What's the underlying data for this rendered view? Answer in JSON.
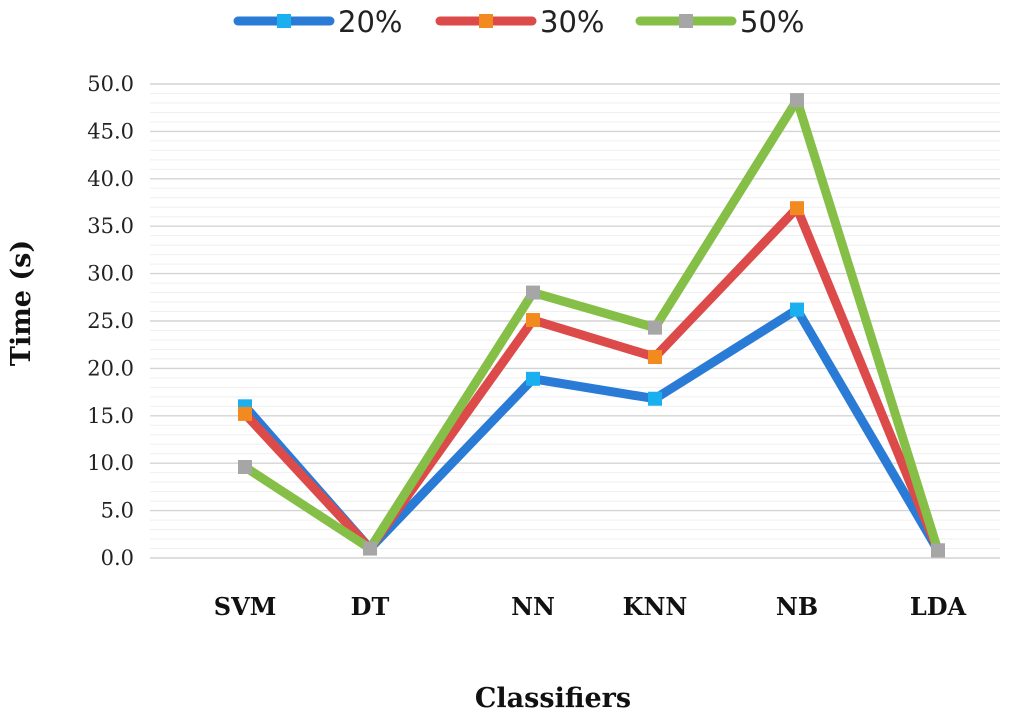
{
  "chart_data": {
    "type": "line",
    "title": "",
    "xlabel": "Classifiers",
    "ylabel": "Time (s)",
    "categories": [
      "SVM",
      "DT",
      "NN",
      "KNN",
      "NB",
      "LDA"
    ],
    "ylim": [
      0,
      50
    ],
    "yticks": [
      "0.0",
      "5.0",
      "10.0",
      "15.0",
      "20.0",
      "25.0",
      "30.0",
      "35.0",
      "40.0",
      "45.0",
      "50.0"
    ],
    "grid": true,
    "legend_position": "top",
    "series": [
      {
        "name": "20%",
        "values": [
          16.0,
          1.0,
          18.9,
          16.8,
          26.2,
          0.8
        ],
        "color": "#2a7bd6",
        "marker_color": "#1ab0f0"
      },
      {
        "name": "30%",
        "values": [
          15.2,
          1.0,
          25.1,
          21.2,
          36.9,
          0.8
        ],
        "color": "#dc4a4a",
        "marker_color": "#f38a1f"
      },
      {
        "name": "50%",
        "values": [
          9.6,
          1.0,
          28.0,
          24.3,
          48.3,
          0.8
        ],
        "color": "#86bf48",
        "marker_color": "#a6a6a6"
      }
    ]
  }
}
